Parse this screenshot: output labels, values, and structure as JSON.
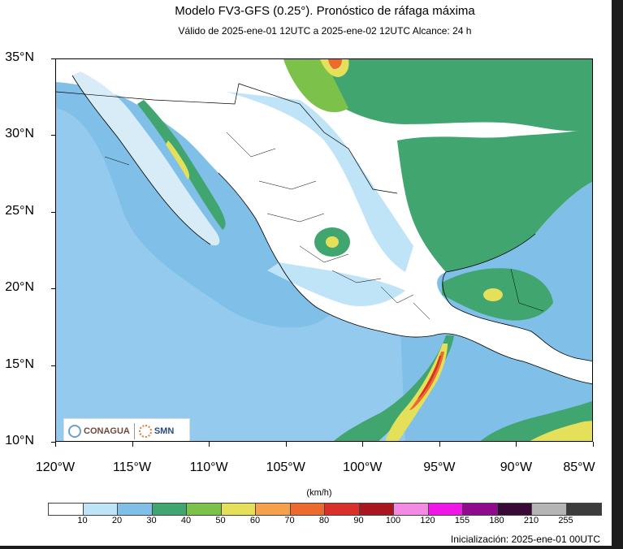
{
  "title": "Modelo FV3-GFS (0.25°). Pronóstico de ráfaga máxima",
  "subtitle": "Válido de 2025-ene-01 12UTC a 2025-ene-02 12UTC    Alcance: 24 h",
  "map": {
    "lat_range": [
      10,
      35
    ],
    "lon_range": [
      -120,
      -85
    ],
    "lat_labels": [
      "35°N",
      "30°N",
      "25°N",
      "20°N",
      "15°N",
      "10°N"
    ],
    "lon_labels": [
      "120°W",
      "115°W",
      "110°W",
      "105°W",
      "100°W",
      "95°W",
      "90°W",
      "85°W"
    ],
    "ocean_color": "#7fbfe8"
  },
  "logos": {
    "conagua": "CONAGUA",
    "smn": "SMN"
  },
  "colorbar": {
    "units": "(km/h)",
    "colors": [
      "#ffffff",
      "#bfe3f7",
      "#7fbfe8",
      "#41a56f",
      "#7cc24a",
      "#e5e05a",
      "#f5a04a",
      "#ec6a2e",
      "#d8302a",
      "#a8161f",
      "#f58ae4",
      "#ef16e8",
      "#8f0a8c",
      "#3a0a36",
      "#b5b5b5",
      "#3c3c3c"
    ],
    "labels": [
      "10",
      "20",
      "30",
      "40",
      "50",
      "60",
      "70",
      "80",
      "90",
      "100",
      "120",
      "155",
      "180",
      "210",
      "255"
    ]
  },
  "footer": {
    "initialization": "Inicialización: 2025-ene-01 00UTC"
  }
}
